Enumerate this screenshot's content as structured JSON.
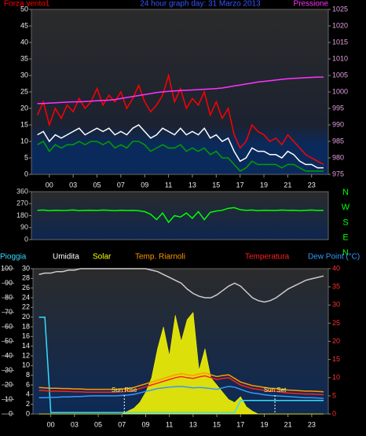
{
  "chart_data": [
    {
      "type": "line",
      "title": "24 hour graph day: 31 Marzo 2013",
      "x": [
        0,
        0.5,
        1,
        1.5,
        2,
        2.5,
        3,
        3.5,
        4,
        4.5,
        5,
        5.5,
        6,
        6.5,
        7,
        7.5,
        8,
        8.5,
        9,
        9.5,
        10,
        10.5,
        11,
        11.5,
        12,
        12.5,
        13,
        13.5,
        14,
        14.5,
        15,
        15.5,
        16,
        16.5,
        17,
        17.5,
        18,
        18.5,
        19,
        19.5,
        20,
        20.5,
        21,
        21.5,
        22,
        22.5,
        23,
        23.5,
        24
      ],
      "xlim": [
        -0.5,
        24.4
      ],
      "xticks": [
        {
          "value": 1,
          "label": "00"
        },
        {
          "value": 3,
          "label": "03"
        },
        {
          "value": 5,
          "label": "05"
        },
        {
          "value": 7,
          "label": "07"
        },
        {
          "value": 9,
          "label": "09"
        },
        {
          "value": 11,
          "label": "11"
        },
        {
          "value": 13,
          "label": "13"
        },
        {
          "value": 15,
          "label": "15"
        },
        {
          "value": 17,
          "label": "17"
        },
        {
          "value": 19,
          "label": "19"
        },
        {
          "value": 21,
          "label": "21"
        },
        {
          "value": 23,
          "label": "23"
        }
      ],
      "ylim": [
        0,
        50
      ],
      "yticks": [
        0,
        5,
        10,
        15,
        20,
        25,
        30,
        35,
        40,
        45,
        50
      ],
      "y2lim": [
        975,
        1025
      ],
      "y2ticks": [
        975,
        980,
        985,
        990,
        995,
        1000,
        1005,
        1010,
        1015,
        1020,
        1025
      ],
      "series": [
        {
          "name": "Forza vento1",
          "color": "#ff0000",
          "values": [
            18,
            22,
            15,
            20,
            17,
            21,
            19,
            23,
            20,
            22,
            26,
            21,
            24,
            22,
            25,
            20,
            23,
            27,
            22,
            19,
            21,
            24,
            30,
            22,
            26,
            20,
            23,
            21,
            25,
            18,
            22,
            17,
            20,
            12,
            8,
            10,
            15,
            13,
            12,
            10,
            11,
            9,
            12,
            10,
            8,
            6,
            5,
            4,
            3
          ]
        },
        {
          "color": "#00a000",
          "values": [
            9,
            10,
            7,
            9,
            8,
            9,
            9,
            10,
            9,
            10,
            10,
            9,
            10,
            8,
            9,
            8,
            10,
            10,
            9,
            7,
            8,
            9,
            8,
            8,
            9,
            7,
            8,
            7,
            8,
            6,
            7,
            5,
            5,
            3,
            1,
            2,
            4,
            3,
            3,
            3,
            3,
            2,
            3,
            3,
            2,
            1,
            1,
            1,
            1
          ]
        },
        {
          "color": "#ffffff",
          "values": [
            12,
            13,
            10,
            12,
            11,
            12,
            13,
            14,
            12,
            13,
            14,
            13,
            14,
            12,
            13,
            12,
            14,
            15,
            13,
            11,
            12,
            14,
            13,
            12,
            14,
            12,
            13,
            12,
            14,
            11,
            12,
            10,
            11,
            7,
            4,
            5,
            8,
            7,
            7,
            6,
            6,
            5,
            7,
            6,
            4,
            3,
            3,
            2,
            2
          ]
        },
        {
          "name": "Pressione",
          "color": "#ff33ff",
          "axis": "y2",
          "values": [
            996.5,
            996.5,
            996.6,
            996.7,
            996.8,
            996.9,
            997,
            997,
            997.1,
            997.2,
            997.3,
            997.4,
            997.5,
            997.7,
            998,
            998.3,
            998.6,
            998.9,
            999.2,
            999.5,
            999.8,
            1000,
            1000.2,
            1000.3,
            1000.4,
            1000.5,
            1000.6,
            1000.7,
            1000.8,
            1000.9,
            1001,
            1001.2,
            1001.5,
            1001.8,
            1002.1,
            1002.4,
            1002.7,
            1003,
            1003.2,
            1003.4,
            1003.6,
            1003.8,
            1004,
            1004.1,
            1004.2,
            1004.3,
            1004.4,
            1004.5,
            1004.5
          ]
        }
      ]
    },
    {
      "type": "line",
      "x": [
        0,
        0.5,
        1,
        1.5,
        2,
        2.5,
        3,
        3.5,
        4,
        4.5,
        5,
        5.5,
        6,
        6.5,
        7,
        7.5,
        8,
        8.5,
        9,
        9.5,
        10,
        10.5,
        11,
        11.5,
        12,
        12.5,
        13,
        13.5,
        14,
        14.5,
        15,
        15.5,
        16,
        16.5,
        17,
        17.5,
        18,
        18.5,
        19,
        19.5,
        20,
        20.5,
        21,
        21.5,
        22,
        22.5,
        23,
        23.5,
        24
      ],
      "xlim": [
        -0.5,
        24.4
      ],
      "ylim": [
        0,
        360
      ],
      "yticks": [
        0,
        90,
        180,
        270,
        360
      ],
      "y2lim": [
        0,
        360
      ],
      "y2ticks": [
        {
          "value": 0,
          "label": "N"
        },
        {
          "value": 90,
          "label": "E"
        },
        {
          "value": 180,
          "label": "S"
        },
        {
          "value": 270,
          "label": "W"
        },
        {
          "value": 360,
          "label": "N"
        }
      ],
      "series": [
        {
          "color": "#00ff00",
          "values": [
            220,
            222,
            218,
            221,
            219,
            220,
            223,
            218,
            220,
            221,
            219,
            222,
            220,
            218,
            221,
            219,
            220,
            217,
            210,
            190,
            150,
            200,
            130,
            180,
            170,
            200,
            160,
            210,
            150,
            205,
            215,
            220,
            235,
            240,
            225,
            220,
            222,
            218,
            221,
            220,
            219,
            222,
            220,
            221,
            218,
            220,
            222,
            219,
            220
          ]
        }
      ]
    },
    {
      "type": "line",
      "x": [
        0,
        0.5,
        1,
        1.5,
        2,
        2.5,
        3,
        3.5,
        4,
        4.5,
        5,
        5.5,
        6,
        6.5,
        7,
        7.5,
        8,
        8.5,
        9,
        9.5,
        10,
        10.5,
        11,
        11.5,
        12,
        12.5,
        13,
        13.5,
        14,
        14.5,
        15,
        15.5,
        16,
        16.5,
        17,
        17.5,
        18,
        18.5,
        19,
        19.5,
        20,
        20.5,
        21,
        21.5,
        22,
        22.5,
        23,
        23.5,
        24
      ],
      "xlim": [
        -0.5,
        24.4
      ],
      "xticks": [
        {
          "value": 1,
          "label": "00"
        },
        {
          "value": 3,
          "label": "03"
        },
        {
          "value": 5,
          "label": "05"
        },
        {
          "value": 7,
          "label": "07"
        },
        {
          "value": 9,
          "label": "09"
        },
        {
          "value": 11,
          "label": "11"
        },
        {
          "value": 13,
          "label": "13"
        },
        {
          "value": 15,
          "label": "15"
        },
        {
          "value": 17,
          "label": "17"
        },
        {
          "value": 19,
          "label": "19"
        },
        {
          "value": 21,
          "label": "21"
        },
        {
          "value": 23,
          "label": "23"
        }
      ],
      "ylim": [
        0,
        100
      ],
      "yticks": [
        0,
        10,
        20,
        30,
        40,
        50,
        60,
        70,
        80,
        90,
        100
      ],
      "y3lim": [
        0,
        30
      ],
      "y3ticks": [
        0,
        2,
        4,
        6,
        8,
        10,
        12,
        14,
        16,
        18,
        20,
        22,
        24,
        26,
        28,
        30
      ],
      "y2lim": [
        0,
        40
      ],
      "y2ticks": [
        0,
        5,
        10,
        15,
        20,
        25,
        30,
        35,
        40
      ],
      "series": [
        {
          "name": "Pioggia",
          "color": "#33ddff",
          "axis": "y3",
          "values": [
            20,
            20,
            0.3,
            0.3,
            0.3,
            0.3,
            0.3,
            0.3,
            0.3,
            0.3,
            0.3,
            0.3,
            0.3,
            0.3,
            0.3,
            0.3,
            0.3,
            0.3,
            0.3,
            0.3,
            0.3,
            0.3,
            0.3,
            0.3,
            0.3,
            0.3,
            0.3,
            0.3,
            0.3,
            0.3,
            0.3,
            0.3,
            0.3,
            0.3,
            2.8,
            2.8,
            2.8,
            2.8,
            2.8,
            2.8,
            2.8,
            2.8,
            2.8,
            2.8,
            2.8,
            2.8,
            2.8,
            2.8,
            2.8
          ]
        },
        {
          "name": "Umidita",
          "color": "#cccccc",
          "values": [
            96,
            97,
            97,
            98,
            98,
            99,
            99,
            100,
            100,
            100,
            100,
            100,
            100,
            100,
            100,
            100,
            100,
            100,
            100,
            99,
            98,
            96,
            94,
            92,
            90,
            86,
            83,
            81,
            80,
            80,
            82,
            85,
            88,
            90,
            88,
            84,
            80,
            78,
            77,
            78,
            80,
            83,
            86,
            88,
            90,
            92,
            93,
            94,
            95
          ]
        },
        {
          "name": "Solar",
          "color": "#ffff00",
          "values": [
            0,
            0,
            0,
            0,
            0,
            0,
            0,
            0,
            0,
            0,
            0,
            0,
            0,
            0,
            0,
            2,
            4,
            8,
            15,
            25,
            45,
            60,
            40,
            68,
            50,
            65,
            70,
            30,
            45,
            25,
            20,
            15,
            10,
            8,
            12,
            5,
            2,
            0,
            0,
            0,
            0,
            0,
            0,
            0,
            0,
            0,
            0,
            0,
            0
          ]
        },
        {
          "name": "Temp. Riarnoli",
          "color": "#ff9900",
          "axis": "y2",
          "values": [
            7.3,
            7.2,
            7.1,
            7.1,
            7,
            7,
            6.9,
            6.9,
            6.8,
            6.8,
            6.8,
            6.8,
            6.8,
            6.8,
            6.9,
            7,
            7.3,
            7.8,
            8.3,
            8.8,
            9.3,
            9.8,
            10.3,
            10.8,
            11.1,
            10.8,
            10.6,
            11,
            11.3,
            10.8,
            10.3,
            10.6,
            10.8,
            9.8,
            8.8,
            8.3,
            7.8,
            7.6,
            7.3,
            7.1,
            7,
            6.8,
            6.6,
            6.5,
            6.4,
            6.3,
            6.3,
            6.2,
            6.1
          ]
        },
        {
          "name": "Temperatura",
          "color": "#ff2020",
          "axis": "y2",
          "values": [
            6.5,
            6.4,
            6.3,
            6.3,
            6.2,
            6.2,
            6.1,
            6.1,
            6,
            6,
            6,
            6,
            6,
            6,
            6.1,
            6.2,
            6.5,
            7,
            7.5,
            8,
            8.5,
            9,
            9.5,
            10,
            10.3,
            10,
            9.8,
            10.2,
            10.5,
            10,
            9.5,
            9.8,
            10,
            9,
            8,
            7.5,
            7,
            6.8,
            6.5,
            6.3,
            6.2,
            6,
            5.8,
            5.7,
            5.6,
            5.5,
            5.5,
            5.4,
            5.3
          ]
        },
        {
          "name": "Dew Point (°C)",
          "color": "#3399ff",
          "axis": "y2",
          "values": [
            4.5,
            4.5,
            4.6,
            4.6,
            4.7,
            4.7,
            4.8,
            4.8,
            4.9,
            5,
            5,
            5,
            5,
            5,
            5.1,
            5.2,
            5.4,
            5.8,
            6.2,
            6.6,
            7,
            7.2,
            7.4,
            7.5,
            7.6,
            7.4,
            7.2,
            7.3,
            7.2,
            7,
            6.8,
            7.2,
            7.6,
            7.4,
            6.8,
            6.2,
            5.8,
            5.6,
            5.3,
            5.1,
            5,
            4.9,
            4.8,
            4.7,
            4.6,
            4.5,
            4.5,
            4.4,
            4.3
          ]
        }
      ],
      "annotations": [
        {
          "text": "Sun Rise",
          "x": 7.2
        },
        {
          "text": "Sun Set",
          "x": 19.9
        }
      ]
    }
  ]
}
